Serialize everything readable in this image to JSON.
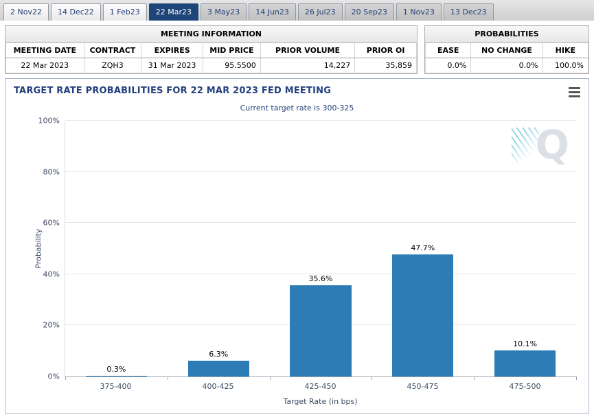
{
  "colors": {
    "accent": "#24407c",
    "axis_text": "#3d4a63",
    "active_tab": "#1d4577",
    "bar_blue": "#2d7cb5"
  },
  "icons": {
    "chart_context_menu": "hamburger-icon",
    "watermark": "quikstrike-q-logo"
  },
  "tabs": [
    {
      "label": "2 Nov22"
    },
    {
      "label": "14 Dec22"
    },
    {
      "label": "1 Feb23"
    },
    {
      "label": "22 Mar23"
    },
    {
      "label": "3 May23"
    },
    {
      "label": "14 Jun23"
    },
    {
      "label": "26 Jul23"
    },
    {
      "label": "20 Sep23"
    },
    {
      "label": "1 Nov23"
    },
    {
      "label": "13 Dec23"
    }
  ],
  "meeting_info": {
    "title": "MEETING INFORMATION",
    "columns": [
      "MEETING DATE",
      "CONTRACT",
      "EXPIRES",
      "MID PRICE",
      "PRIOR VOLUME",
      "PRIOR OI"
    ],
    "row": [
      "22 Mar 2023",
      "ZQH3",
      "31 Mar 2023",
      "95.5500",
      "14,227",
      "35,859"
    ]
  },
  "probabilities": {
    "title": "PROBABILITIES",
    "columns": [
      "EASE",
      "NO CHANGE",
      "HIKE"
    ],
    "row": [
      "0.0%",
      "0.0%",
      "100.0%"
    ]
  },
  "chart_data": {
    "type": "bar",
    "title": "TARGET RATE PROBABILITIES FOR 22 MAR 2023 FED MEETING",
    "subtitle": "Current target rate is 300-325",
    "categories": [
      "375-400",
      "400-425",
      "425-450",
      "450-475",
      "475-500"
    ],
    "values": [
      0.3,
      6.3,
      35.6,
      47.7,
      10.1
    ],
    "labels": [
      "0.3%",
      "6.3%",
      "35.6%",
      "47.7%",
      "10.1%"
    ],
    "xlabel": "Target Rate (in bps)",
    "ylabel": "Probability",
    "ylim": [
      0,
      100
    ],
    "yticks": [
      "0%",
      "20%",
      "40%",
      "60%",
      "80%",
      "100%"
    ],
    "grid": true,
    "legend": false,
    "bar_color": "#2d7cb5"
  }
}
